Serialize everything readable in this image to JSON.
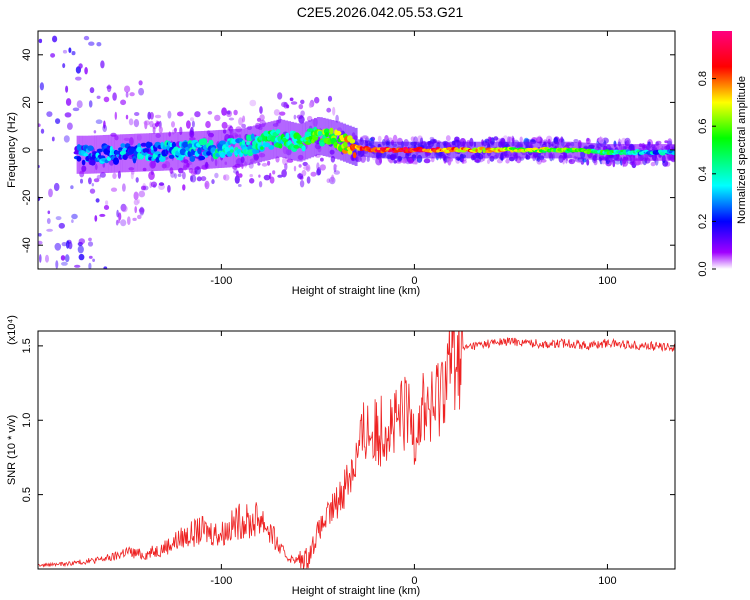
{
  "title": "C2E5.2026.042.05.53.G21",
  "chart_data": [
    {
      "type": "heatmap",
      "xlabel": "Height of straight line (km)",
      "ylabel": "Frequency (Hz)",
      "xlim": [
        -195,
        135
      ],
      "ylim": [
        -50,
        50
      ],
      "xticks": [
        -100,
        0,
        100
      ],
      "xtick_labels": [
        "-100",
        "0",
        "100"
      ],
      "yticks": [
        -40,
        -20,
        0,
        20,
        40
      ],
      "ytick_labels": [
        "-40",
        "-20",
        "0",
        "20",
        "40"
      ],
      "colorbar": {
        "label": "Normalized spectral amplitude",
        "range": [
          0,
          1
        ],
        "ticks": [
          0.0,
          0.2,
          0.4,
          0.6,
          0.8
        ],
        "tick_labels": [
          "0.0",
          "0.2",
          "0.4",
          "0.6",
          "0.8"
        ],
        "colors": [
          "#ffffff",
          "#a000ff",
          "#0000ff",
          "#00ffff",
          "#00ff00",
          "#ffff00",
          "#ff0000",
          "#ff0080"
        ]
      },
      "ridge": {
        "x": [
          -170,
          -140,
          -110,
          -90,
          -80,
          -70,
          -60,
          -50,
          -40,
          -30,
          -20,
          -10,
          0,
          10,
          20,
          40,
          60,
          80,
          100,
          120,
          135
        ],
        "frequency_hz": [
          -2,
          -1,
          0,
          1,
          3,
          5,
          3,
          6,
          4,
          1,
          0,
          0,
          0,
          0,
          0,
          0,
          0,
          0,
          -1,
          -1,
          -1
        ],
        "amplitude": [
          0.35,
          0.4,
          0.45,
          0.5,
          0.55,
          0.55,
          0.6,
          0.65,
          0.7,
          0.9,
          0.95,
          1.0,
          1.0,
          0.95,
          0.9,
          0.8,
          0.75,
          0.7,
          0.6,
          0.45,
          0.4
        ]
      }
    },
    {
      "type": "line",
      "xlabel": "Height of straight line (km)",
      "ylabel": "SNR (10 * v/v)",
      "y_multiplier": "(x10⁴)",
      "xlim": [
        -195,
        135
      ],
      "ylim": [
        0,
        1.6
      ],
      "xticks": [
        -100,
        0,
        100
      ],
      "xtick_labels": [
        "-100",
        "0",
        "100"
      ],
      "yticks": [
        0.5,
        1.0,
        1.5
      ],
      "ytick_labels": [
        "0.5",
        "1.0",
        "1.5"
      ],
      "color": "#ee2222",
      "series": [
        {
          "name": "SNR",
          "x": [
            -195,
            -180,
            -165,
            -155,
            -150,
            -140,
            -130,
            -120,
            -110,
            -100,
            -95,
            -90,
            -85,
            -80,
            -75,
            -70,
            -65,
            -60,
            -55,
            -50,
            -45,
            -40,
            -35,
            -30,
            -25,
            -20,
            -15,
            -10,
            -5,
            0,
            5,
            10,
            15,
            20,
            25,
            30,
            40,
            50,
            60,
            70,
            80,
            90,
            100,
            110,
            120,
            135
          ],
          "y": [
            0.02,
            0.03,
            0.05,
            0.07,
            0.1,
            0.08,
            0.12,
            0.18,
            0.22,
            0.2,
            0.24,
            0.28,
            0.26,
            0.3,
            0.22,
            0.12,
            0.06,
            0.05,
            0.08,
            0.25,
            0.35,
            0.45,
            0.6,
            0.75,
            0.95,
            0.9,
            1.0,
            0.95,
            1.05,
            0.95,
            1.1,
            1.05,
            1.3,
            1.42,
            1.48,
            1.5,
            1.52,
            1.53,
            1.52,
            1.51,
            1.52,
            1.5,
            1.52,
            1.51,
            1.5,
            1.49
          ]
        }
      ]
    }
  ]
}
